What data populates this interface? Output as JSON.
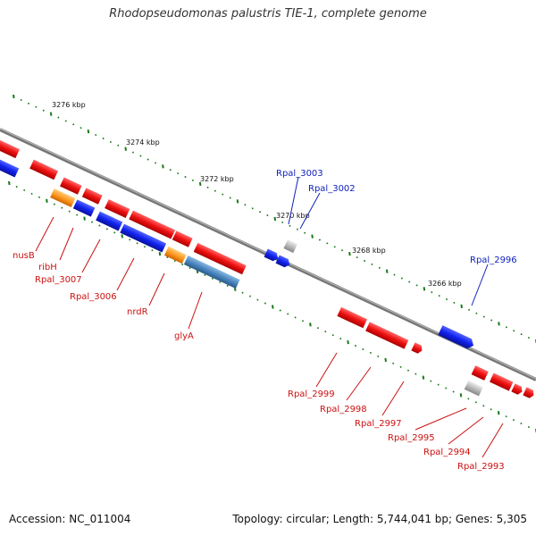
{
  "title": "Rhodopseudomonas palustris TIE-1, complete genome",
  "footer": {
    "accession": "Accession: NC_011004",
    "summary": "Topology: circular; Length: 5,744,041 bp; Genes: 5,305"
  },
  "colors": {
    "forward_gene": "#ee1111",
    "reverse_gene": "#1122ee",
    "rna": "#ff9922",
    "pseudo": "#bbbbbb",
    "steelblue": "#4a86c0",
    "tick": "#1a7a1a",
    "axis": "#777777",
    "label_red": "#cc1111",
    "label_blue": "#1122bb"
  },
  "ticks": [
    {
      "text": "3276 kbp"
    },
    {
      "text": "3274 kbp"
    },
    {
      "text": "3272 kbp"
    },
    {
      "text": "3270 kbp"
    },
    {
      "text": "3268 kbp"
    },
    {
      "text": "3266 kbp"
    }
  ],
  "labels": [
    {
      "text": "nusB",
      "color": "red"
    },
    {
      "text": "ribH",
      "color": "red"
    },
    {
      "text": "Rpal_3007",
      "color": "red"
    },
    {
      "text": "Rpal_3006",
      "color": "red"
    },
    {
      "text": "nrdR",
      "color": "red"
    },
    {
      "text": "glyA",
      "color": "red"
    },
    {
      "text": "Rpal_3003",
      "color": "blue"
    },
    {
      "text": "Rpal_3002",
      "color": "blue"
    },
    {
      "text": "Rpal_2996",
      "color": "blue"
    },
    {
      "text": "Rpal_2999",
      "color": "red"
    },
    {
      "text": "Rpal_2998",
      "color": "red"
    },
    {
      "text": "Rpal_2997",
      "color": "red"
    },
    {
      "text": "Rpal_2995",
      "color": "red"
    },
    {
      "text": "Rpal_2994",
      "color": "red"
    },
    {
      "text": "Rpal_2993",
      "color": "red"
    }
  ]
}
